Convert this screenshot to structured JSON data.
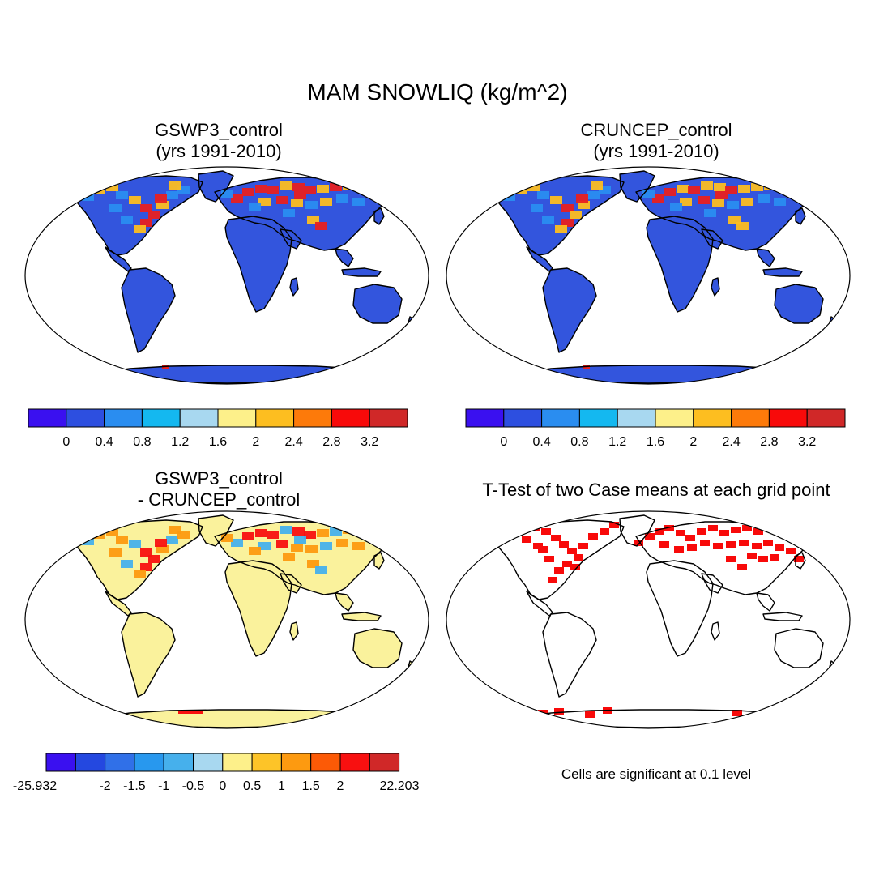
{
  "main_title": "MAM SNOWLIQ (kg/m^2)",
  "panels": [
    {
      "title_line1": "GSWP3_control",
      "title_line2": "(yrs 1991-2010)"
    },
    {
      "title_line1": "CRUNCEP_control",
      "title_line2": "(yrs 1991-2010)"
    },
    {
      "title_line1": "GSWP3_control",
      "title_line2": "- CRUNCEP_control"
    },
    {
      "title_line1": "T-Test of two Case means at each grid point"
    }
  ],
  "colorbar_abs": {
    "colors": [
      "#3a10f0",
      "#2d4fe0",
      "#2a8df0",
      "#14b8f0",
      "#a8d8f0",
      "#fdf08a",
      "#fdbe20",
      "#fd7a0a",
      "#f80a0a",
      "#d02828"
    ],
    "labels": [
      "0",
      "0.4",
      "0.8",
      "1.2",
      "1.6",
      "2",
      "2.4",
      "2.8",
      "3.2"
    ]
  },
  "colorbar_diff": {
    "colors": [
      "#3a10f0",
      "#2448e0",
      "#3070e8",
      "#2898ee",
      "#46b0ec",
      "#a8d8f0",
      "#fdf08a",
      "#fdc428",
      "#fd9a10",
      "#fc5a06",
      "#f81010",
      "#d02828"
    ],
    "labels": [
      "-25.932",
      "-2",
      "-1.5",
      "-1",
      "-0.5",
      "0",
      "0.5",
      "1",
      "1.5",
      "2",
      "22.203"
    ]
  },
  "map_fill": {
    "control_land": "#3355dd",
    "control_south_snow": "#2a8df0",
    "control_north_snow": "#fdbe20",
    "control_north_deep": "#e82020",
    "diff_land": "#faf29c",
    "diff_north_pos": "#fd9a10",
    "diff_north_strong": "#f81010",
    "diff_north_neg": "#46b0ec",
    "ttest_sig": "#f80a0a"
  },
  "significance_note": "Cells are significant at 0.1 level"
}
